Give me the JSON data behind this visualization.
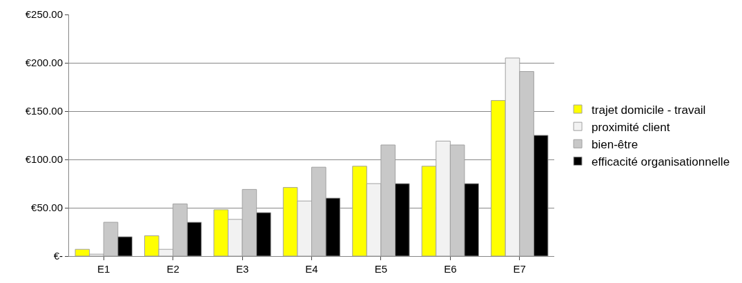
{
  "chart_data": {
    "type": "bar",
    "categories": [
      "E1",
      "E2",
      "E3",
      "E4",
      "E5",
      "E6",
      "E7"
    ],
    "series": [
      {
        "name": "trajet domicile - travail",
        "color": "#ffff00",
        "values": [
          7,
          21,
          48,
          71,
          93,
          93,
          161
        ]
      },
      {
        "name": "proximité client",
        "color": "#f2f2f2",
        "values": [
          2,
          7,
          38,
          57,
          75,
          119,
          205
        ]
      },
      {
        "name": "bien-être",
        "color": "#c8c8c8",
        "values": [
          35,
          54,
          69,
          92,
          115,
          115,
          191
        ]
      },
      {
        "name": "efficacité organisationnelle",
        "color": "#000000",
        "values": [
          20,
          35,
          45,
          60,
          75,
          75,
          125
        ]
      }
    ],
    "ylim": [
      0,
      250
    ],
    "yticks": [
      {
        "value": 0,
        "label": "€-"
      },
      {
        "value": 50,
        "label": "€50.00"
      },
      {
        "value": 100,
        "label": "€100.00"
      },
      {
        "value": 150,
        "label": "€150.00"
      },
      {
        "value": 200,
        "label": "€200.00"
      },
      {
        "value": 250,
        "label": "€250.00"
      }
    ],
    "grid": "y",
    "legend": "right"
  }
}
